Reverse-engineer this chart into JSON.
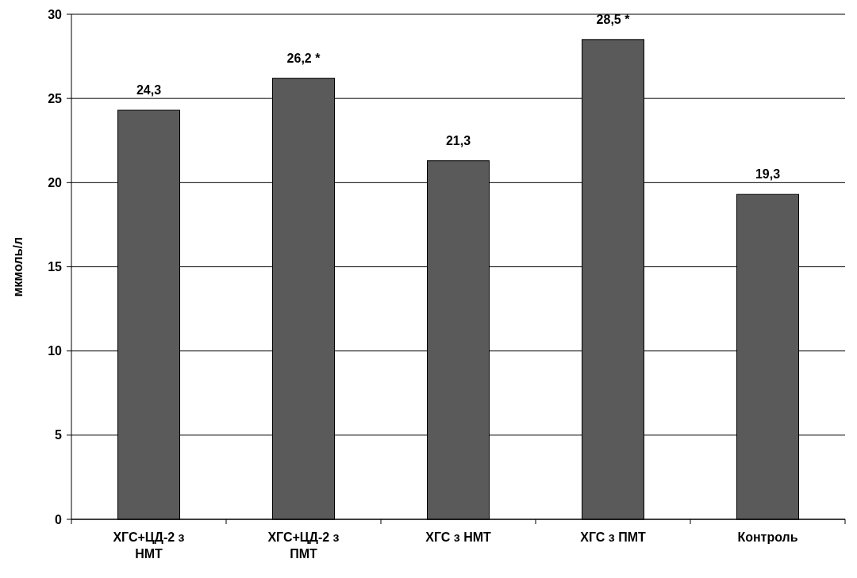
{
  "chart_data": {
    "type": "bar",
    "ylabel": "мкмоль/л",
    "categories": [
      "ХГС+ЦД-2 з НМТ",
      "ХГС+ЦД-2 з ПМТ",
      "ХГС з НМТ",
      "ХГС з ПМТ",
      "Контроль"
    ],
    "values": [
      24.3,
      26.2,
      21.3,
      28.5,
      19.3
    ],
    "value_labels": [
      "24,3",
      "26,2 *",
      "21,3",
      "28,5 *",
      "19,3"
    ],
    "color": "#5a5a5a",
    "ylim": [
      0,
      30
    ],
    "yticks": [
      0,
      5,
      10,
      15,
      20,
      25,
      30
    ],
    "grid": "y"
  }
}
